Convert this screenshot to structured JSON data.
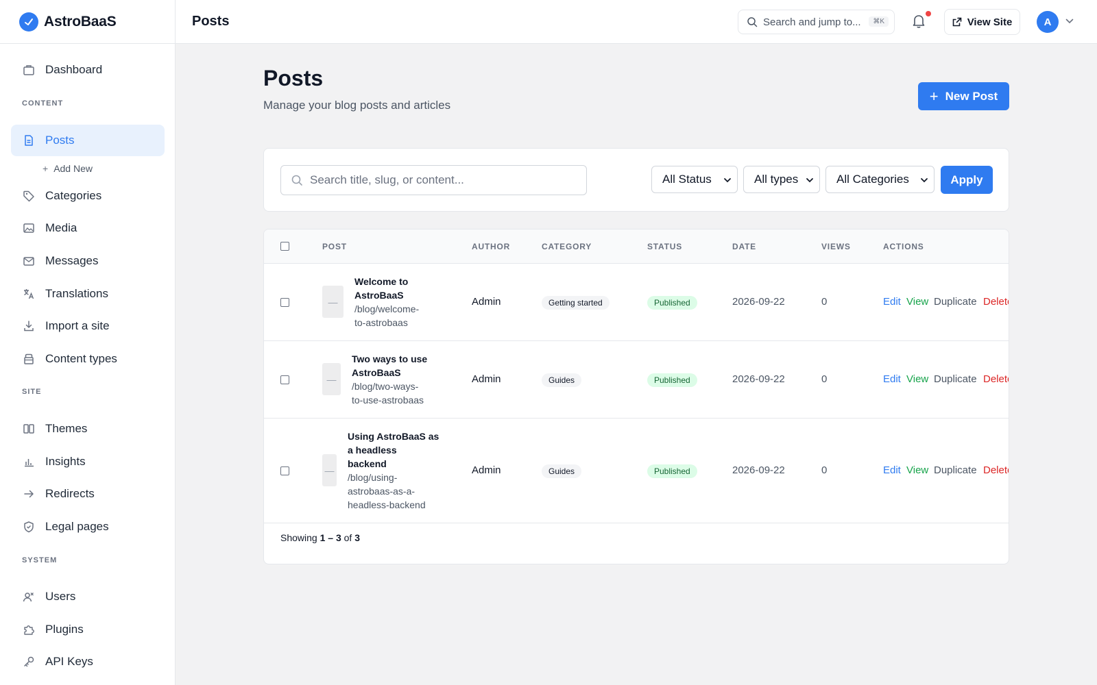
{
  "brand": {
    "name": "AstroBaaS"
  },
  "sidebar": {
    "dashboard": "Dashboard",
    "section_content": "CONTENT",
    "posts": "Posts",
    "add_new": "Add New",
    "categories": "Categories",
    "media": "Media",
    "messages": "Messages",
    "translations": "Translations",
    "import": "Import a site",
    "content_types": "Content types",
    "section_site": "SITE",
    "themes": "Themes",
    "insights": "Insights",
    "redirects": "Redirects",
    "legal": "Legal pages",
    "section_system": "SYSTEM",
    "users": "Users",
    "plugins": "Plugins",
    "api_keys": "API Keys"
  },
  "topbar": {
    "title": "Posts",
    "search_placeholder": "Search and jump to...",
    "search_shortcut": "⌘K",
    "view_site": "View Site",
    "avatar_initial": "A"
  },
  "header": {
    "title": "Posts",
    "subtitle": "Manage your blog posts and articles",
    "new_post": "New Post"
  },
  "filters": {
    "search_placeholder": "Search title, slug, or content...",
    "status": "All Status",
    "types": "All types",
    "categories": "All Categories",
    "apply": "Apply"
  },
  "table": {
    "headers": {
      "post": "POST",
      "author": "AUTHOR",
      "category": "CATEGORY",
      "status": "STATUS",
      "date": "DATE",
      "views": "VIEWS",
      "actions": "ACTIONS"
    },
    "rows": [
      {
        "title_lines": [
          "Welcome to",
          "AstroBaaS"
        ],
        "slug_lines": [
          "/blog/welcome-",
          "to-astrobaas"
        ],
        "thumb": "—",
        "author": "Admin",
        "category": "Getting started",
        "status": "Published",
        "date": "2026-09-22",
        "views": "0"
      },
      {
        "title_lines": [
          "Two ways to use",
          "AstroBaaS"
        ],
        "slug_lines": [
          "/blog/two-ways-",
          "to-use-astrobaas"
        ],
        "thumb": "—",
        "author": "Admin",
        "category": "Guides",
        "status": "Published",
        "date": "2026-09-22",
        "views": "0"
      },
      {
        "title_lines": [
          "Using AstroBaaS as",
          "a headless",
          "backend"
        ],
        "slug_lines": [
          "/blog/using-",
          "astrobaas-as-a-",
          "headless-backend"
        ],
        "thumb": "—",
        "author": "Admin",
        "category": "Guides",
        "status": "Published",
        "date": "2026-09-22",
        "views": "0"
      }
    ],
    "actions": {
      "edit": "Edit",
      "view": "View",
      "duplicate": "Duplicate",
      "delete": "Delete"
    },
    "footer": {
      "prefix": "Showing",
      "range": "1 – 3",
      "of": "of",
      "total": "3"
    }
  },
  "colors": {
    "accent": "#2f7bf0",
    "published_bg": "#dcfce7",
    "published_text": "#166534",
    "delete": "#dc2626",
    "view": "#16a34a"
  }
}
